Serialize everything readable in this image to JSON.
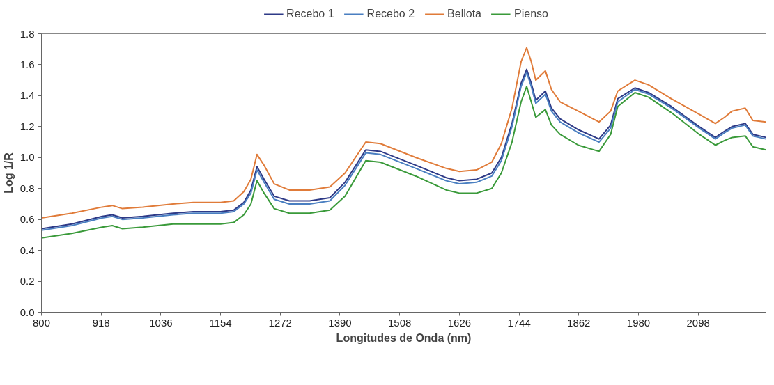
{
  "chart_data": {
    "type": "line",
    "xlabel": "Longitudes de Onda (nm)",
    "ylabel": "Log 1/R",
    "x": [
      800,
      860,
      920,
      940,
      960,
      1000,
      1060,
      1100,
      1154,
      1180,
      1200,
      1214,
      1226,
      1240,
      1260,
      1290,
      1330,
      1370,
      1400,
      1441,
      1470,
      1540,
      1600,
      1626,
      1660,
      1690,
      1709,
      1730,
      1748,
      1759,
      1768,
      1777,
      1796,
      1808,
      1825,
      1861,
      1902,
      1925,
      1939,
      1973,
      2000,
      2045,
      2100,
      2132,
      2150,
      2165,
      2191,
      2206,
      2232
    ],
    "series": [
      {
        "name": "Recebo 1",
        "color": "#2e3a87",
        "values": [
          0.54,
          0.57,
          0.62,
          0.63,
          0.61,
          0.62,
          0.64,
          0.65,
          0.65,
          0.66,
          0.71,
          0.79,
          0.94,
          0.86,
          0.75,
          0.72,
          0.72,
          0.74,
          0.84,
          1.05,
          1.04,
          0.95,
          0.87,
          0.85,
          0.86,
          0.9,
          1.0,
          1.22,
          1.48,
          1.57,
          1.48,
          1.37,
          1.43,
          1.32,
          1.25,
          1.18,
          1.12,
          1.21,
          1.38,
          1.45,
          1.42,
          1.33,
          1.2,
          1.13,
          1.17,
          1.2,
          1.22,
          1.15,
          1.13
        ]
      },
      {
        "name": "Recebo 2",
        "color": "#4a7fc1",
        "values": [
          0.53,
          0.56,
          0.61,
          0.62,
          0.6,
          0.61,
          0.63,
          0.64,
          0.64,
          0.65,
          0.7,
          0.77,
          0.92,
          0.84,
          0.73,
          0.7,
          0.7,
          0.72,
          0.82,
          1.03,
          1.02,
          0.93,
          0.85,
          0.83,
          0.84,
          0.88,
          0.98,
          1.2,
          1.46,
          1.55,
          1.46,
          1.35,
          1.41,
          1.3,
          1.23,
          1.16,
          1.1,
          1.19,
          1.36,
          1.44,
          1.41,
          1.32,
          1.19,
          1.12,
          1.16,
          1.19,
          1.21,
          1.14,
          1.12
        ]
      },
      {
        "name": "Bellota",
        "color": "#e07b39",
        "values": [
          0.61,
          0.64,
          0.68,
          0.69,
          0.67,
          0.68,
          0.7,
          0.71,
          0.71,
          0.72,
          0.78,
          0.86,
          1.02,
          0.95,
          0.83,
          0.79,
          0.79,
          0.81,
          0.9,
          1.1,
          1.09,
          1.0,
          0.93,
          0.91,
          0.92,
          0.97,
          1.09,
          1.32,
          1.62,
          1.71,
          1.62,
          1.5,
          1.56,
          1.44,
          1.36,
          1.3,
          1.23,
          1.3,
          1.43,
          1.5,
          1.47,
          1.38,
          1.28,
          1.22,
          1.26,
          1.3,
          1.32,
          1.24,
          1.23
        ]
      },
      {
        "name": "Pienso",
        "color": "#3a9a3a",
        "values": [
          0.48,
          0.51,
          0.55,
          0.56,
          0.54,
          0.55,
          0.57,
          0.57,
          0.57,
          0.58,
          0.63,
          0.7,
          0.85,
          0.77,
          0.67,
          0.64,
          0.64,
          0.66,
          0.75,
          0.98,
          0.97,
          0.88,
          0.79,
          0.77,
          0.77,
          0.8,
          0.9,
          1.1,
          1.36,
          1.46,
          1.36,
          1.26,
          1.31,
          1.21,
          1.15,
          1.08,
          1.04,
          1.15,
          1.33,
          1.42,
          1.39,
          1.29,
          1.15,
          1.08,
          1.11,
          1.13,
          1.14,
          1.07,
          1.05
        ]
      }
    ],
    "xlim": [
      800,
      2232
    ],
    "xticks": [
      800,
      918,
      1036,
      1154,
      1272,
      1390,
      1508,
      1626,
      1744,
      1862,
      1980,
      2098
    ],
    "ylim": [
      0,
      1.8
    ],
    "yticks": [
      {
        "value": 0,
        "label": "0.0"
      },
      {
        "value": 0.2,
        "label": "0.2"
      },
      {
        "value": 0.4,
        "label": "0.4"
      },
      {
        "value": 0.6,
        "label": "0.6"
      },
      {
        "value": 0.8,
        "label": "0.8"
      },
      {
        "value": 1.0,
        "label": "1.0"
      },
      {
        "value": 1.2,
        "label": "1.2"
      },
      {
        "value": 1.4,
        "label": "1.4"
      },
      {
        "value": 1.6,
        "label": "1.6"
      },
      {
        "value": 1.8,
        "label": "1.8"
      }
    ],
    "grid": false,
    "legend": "top",
    "line_style": "solid",
    "marker": "none"
  }
}
